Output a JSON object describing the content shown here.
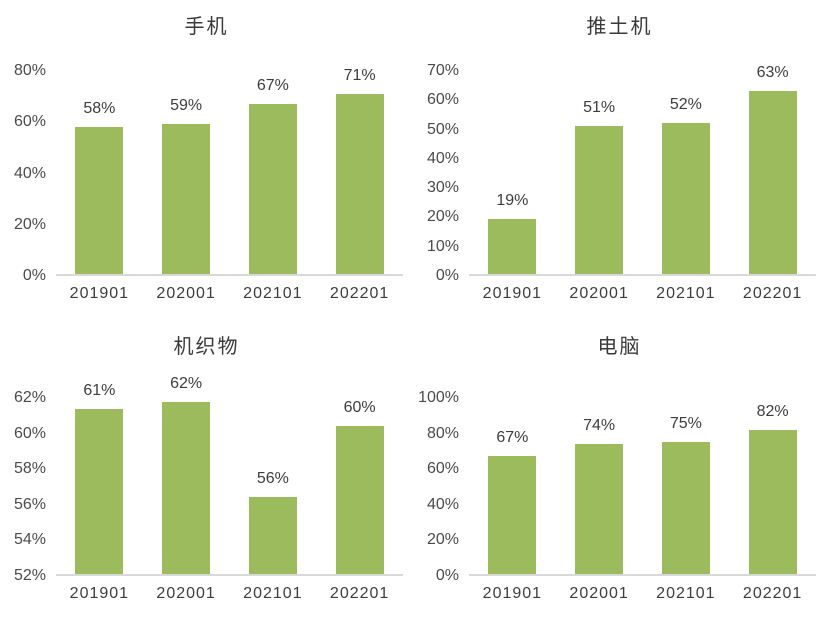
{
  "colors": {
    "bar": "#9cbb5d",
    "axis_line": "#d9d9d9",
    "tick_text": "#4b4b4b",
    "label_text": "#3d3d3d",
    "title_text": "#3a3a3a",
    "background": "#ffffff"
  },
  "chart_data": [
    {
      "type": "bar",
      "title": "手机",
      "categories": [
        "201901",
        "202001",
        "202101",
        "202201"
      ],
      "values": [
        58,
        59,
        67,
        71
      ],
      "labels": [
        "58%",
        "59%",
        "67%",
        "71%"
      ],
      "plot_values": [
        58,
        59,
        67,
        71
      ],
      "ylim": [
        0,
        80
      ],
      "ytick_values": [
        0,
        20,
        40,
        60,
        80
      ],
      "yticks": [
        "0%",
        "20%",
        "40%",
        "60%",
        "80%"
      ],
      "grid": false,
      "legend": null,
      "xlabel": "",
      "ylabel": ""
    },
    {
      "type": "bar",
      "title": "推土机",
      "categories": [
        "201901",
        "202001",
        "202101",
        "202201"
      ],
      "values": [
        19,
        51,
        52,
        63
      ],
      "labels": [
        "19%",
        "51%",
        "52%",
        "63%"
      ],
      "plot_values": [
        19,
        51,
        52,
        63
      ],
      "ylim": [
        0,
        70
      ],
      "ytick_values": [
        0,
        10,
        20,
        30,
        40,
        50,
        60,
        70
      ],
      "yticks": [
        "0%",
        "10%",
        "20%",
        "30%",
        "40%",
        "50%",
        "60%",
        "70%"
      ],
      "grid": false,
      "legend": null,
      "xlabel": "",
      "ylabel": ""
    },
    {
      "type": "bar",
      "title": "机织物",
      "categories": [
        "201901",
        "202001",
        "202101",
        "202201"
      ],
      "values": [
        61,
        62,
        56,
        60
      ],
      "labels": [
        "61%",
        "62%",
        "56%",
        "60%"
      ],
      "plot_values": [
        61.4,
        61.8,
        56.4,
        60.4
      ],
      "ylim": [
        52,
        62
      ],
      "ytick_values": [
        52,
        54,
        56,
        58,
        60,
        62
      ],
      "yticks": [
        "52%",
        "54%",
        "56%",
        "58%",
        "60%",
        "62%"
      ],
      "grid": false,
      "legend": null,
      "xlabel": "",
      "ylabel": ""
    },
    {
      "type": "bar",
      "title": "电脑",
      "categories": [
        "201901",
        "202001",
        "202101",
        "202201"
      ],
      "values": [
        67,
        74,
        75,
        82
      ],
      "labels": [
        "67%",
        "74%",
        "75%",
        "82%"
      ],
      "plot_values": [
        67,
        74,
        75,
        82
      ],
      "ylim": [
        0,
        100
      ],
      "ytick_values": [
        0,
        20,
        40,
        60,
        80,
        100
      ],
      "yticks": [
        "0%",
        "20%",
        "40%",
        "60%",
        "80%",
        "100%"
      ],
      "grid": false,
      "legend": null,
      "xlabel": "",
      "ylabel": ""
    }
  ]
}
